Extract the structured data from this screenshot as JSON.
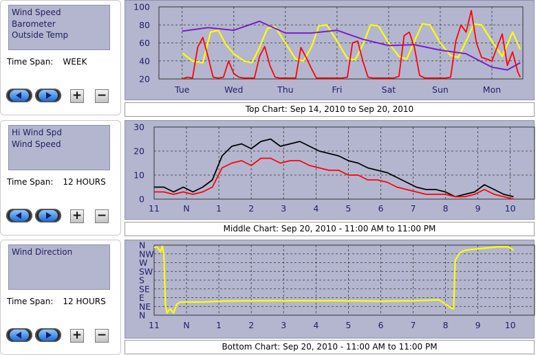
{
  "panels": [
    {
      "list": [
        "Wind Speed",
        "Barometer",
        "Outside Temp"
      ],
      "time_span_label": "Time Span:",
      "time_span_value": "WEEK",
      "caption": "Top Chart:  Sep 14, 2010  to  Sep 20, 2010"
    },
    {
      "list": [
        "Hi Wind Spd",
        "Wind Speed"
      ],
      "time_span_label": "Time Span:",
      "time_span_value": "12 HOURS",
      "caption": "Middle Chart:  Sep 20, 2010 - 11:00 AM  to  11:00 PM"
    },
    {
      "list": [
        "Wind Direction"
      ],
      "time_span_label": "Time Span:",
      "time_span_value": "12 HOURS",
      "caption": "Bottom Chart:  Sep 20, 2010 - 11:00 AM  to  11:00 PM"
    }
  ],
  "buttons": {
    "back_icon": "left-arrow-icon",
    "forward_icon": "right-arrow-icon",
    "zoom_in": "+",
    "zoom_out": "−"
  },
  "colors": {
    "panel_bg": "#b4b6cf",
    "wind": "#ff0000",
    "temp": "#ffff00",
    "baro": "#7a1ec8",
    "hi_wind": "#000000",
    "direction": "#ffff00"
  },
  "chart_data": [
    {
      "type": "line",
      "ylim": [
        20,
        100
      ],
      "y_ticks": [
        "100",
        "80",
        "60",
        "40",
        "20"
      ],
      "x_ticks": [
        "Tue",
        "Wed",
        "Thu",
        "Fri",
        "Sat",
        "Sun",
        "Mon"
      ],
      "series": [
        {
          "key": "temp",
          "x": [
            0,
            0.2,
            0.4,
            0.55,
            0.7,
            0.85,
            1.0,
            1.2,
            1.35,
            1.5,
            1.65,
            1.8,
            2.0,
            2.2,
            2.35,
            2.5,
            2.65,
            2.8,
            3.0,
            3.2,
            3.35,
            3.5,
            3.65,
            3.8,
            4.0,
            4.2,
            4.35,
            4.5,
            4.65,
            4.8,
            5.0,
            5.2,
            5.35,
            5.5,
            5.65,
            5.8,
            6.0,
            6.2,
            6.4,
            6.55
          ],
          "y": [
            49,
            40,
            38,
            72,
            74,
            58,
            48,
            40,
            38,
            55,
            76,
            78,
            60,
            42,
            40,
            55,
            79,
            80,
            62,
            43,
            41,
            58,
            80,
            79,
            60,
            45,
            42,
            62,
            81,
            80,
            60,
            46,
            44,
            62,
            81,
            80,
            62,
            45,
            72,
            53
          ]
        },
        {
          "key": "baro",
          "x": [
            0,
            0.5,
            1.0,
            1.5,
            2.0,
            2.5,
            3.0,
            3.5,
            4.0,
            4.5,
            5.0,
            5.5,
            6.0,
            6.3,
            6.55
          ],
          "y": [
            73,
            77,
            74,
            84,
            71,
            71,
            74,
            64,
            57,
            58,
            52,
            48,
            33,
            30,
            38
          ]
        },
        {
          "key": "wind",
          "x": [
            0,
            0.1,
            0.2,
            0.3,
            0.4,
            0.5,
            0.6,
            0.7,
            0.8,
            0.9,
            1.0,
            1.1,
            1.2,
            1.3,
            1.4,
            1.5,
            1.6,
            1.7,
            1.8,
            1.9,
            2.0,
            2.1,
            2.2,
            2.3,
            2.4,
            2.5,
            2.6,
            2.7,
            2.8,
            2.9,
            3.0,
            3.1,
            3.2,
            3.3,
            3.4,
            3.5,
            3.6,
            3.7,
            3.8,
            3.9,
            4.0,
            4.1,
            4.2,
            4.3,
            4.4,
            4.5,
            4.6,
            4.7,
            4.8,
            4.9,
            5.0,
            5.1,
            5.2,
            5.3,
            5.4,
            5.5,
            5.6,
            5.7,
            5.8,
            5.9,
            6.0,
            6.1,
            6.2,
            6.3,
            6.4,
            6.5,
            6.55
          ],
          "y": [
            20,
            22,
            21,
            55,
            66,
            45,
            22,
            21,
            22,
            40,
            26,
            22,
            21,
            21,
            21,
            45,
            56,
            35,
            22,
            21,
            21,
            21,
            21,
            55,
            44,
            32,
            21,
            21,
            21,
            21,
            21,
            21,
            22,
            60,
            62,
            40,
            22,
            21,
            21,
            21,
            21,
            21,
            23,
            68,
            72,
            55,
            24,
            21,
            21,
            21,
            21,
            21,
            22,
            62,
            80,
            72,
            96,
            60,
            44,
            42,
            40,
            55,
            70,
            35,
            50,
            28,
            22
          ]
        }
      ]
    },
    {
      "type": "line",
      "ylim": [
        0,
        30
      ],
      "y_ticks": [
        "30",
        "20",
        "10",
        "0"
      ],
      "x_ticks": [
        "11",
        "N",
        "1",
        "2",
        "3",
        "4",
        "5",
        "6",
        "7",
        "8",
        "9",
        "10",
        "11"
      ],
      "series": [
        {
          "key": "hi_wind",
          "x": [
            0,
            0.3,
            0.6,
            0.9,
            1.2,
            1.5,
            1.8,
            2.1,
            2.4,
            2.7,
            3.0,
            3.3,
            3.6,
            3.9,
            4.2,
            4.5,
            4.8,
            5.1,
            5.4,
            5.7,
            6.0,
            6.3,
            6.6,
            6.9,
            7.2,
            7.5,
            7.8,
            8.1,
            8.4,
            8.7,
            9.0,
            9.3,
            9.6,
            9.9,
            10.2,
            10.5,
            10.8,
            11.1
          ],
          "y": [
            5,
            5,
            3,
            5,
            3,
            5,
            8,
            18,
            22,
            23,
            21,
            24,
            25,
            22,
            23,
            24,
            22,
            20,
            19,
            18,
            16,
            15,
            13,
            12,
            11,
            9,
            7,
            5,
            4,
            4,
            3,
            1,
            2,
            3,
            6,
            4,
            2,
            1
          ]
        },
        {
          "key": "wind",
          "x": [
            0,
            0.3,
            0.6,
            0.9,
            1.2,
            1.5,
            1.8,
            2.1,
            2.4,
            2.7,
            3.0,
            3.3,
            3.6,
            3.9,
            4.2,
            4.5,
            4.8,
            5.1,
            5.4,
            5.7,
            6.0,
            6.3,
            6.6,
            6.9,
            7.2,
            7.5,
            7.8,
            8.1,
            8.4,
            8.7,
            9.0,
            9.3,
            9.6,
            9.9,
            10.2,
            10.5,
            10.8,
            11.1
          ],
          "y": [
            3,
            3,
            2,
            3,
            2,
            3,
            5,
            13,
            15,
            16,
            14,
            17,
            17,
            15,
            16,
            16,
            14,
            13,
            12,
            12,
            10,
            10,
            8,
            8,
            7,
            5,
            4,
            3,
            2,
            2,
            2,
            1,
            1,
            2,
            4,
            2,
            1,
            0
          ]
        }
      ]
    },
    {
      "type": "line",
      "y_ticks": [
        "N",
        "NW",
        "W",
        "SW",
        "S",
        "SE",
        "E",
        "NE",
        "N"
      ],
      "x_ticks": [
        "11",
        "N",
        "1",
        "2",
        "3",
        "4",
        "5",
        "6",
        "7",
        "8",
        "9",
        "10",
        "11"
      ],
      "series": [
        {
          "key": "direction",
          "x": [
            0,
            0.1,
            0.2,
            0.25,
            0.3,
            0.35,
            0.4,
            0.5,
            0.6,
            0.7,
            0.8,
            1.0,
            1.5,
            2.0,
            3.0,
            4.0,
            5.0,
            6.0,
            7.0,
            8.0,
            8.8,
            9.2,
            9.25,
            9.3,
            9.4,
            9.5,
            9.6,
            9.8,
            10.2,
            10.6,
            10.9,
            11.0,
            11.1
          ],
          "y": [
            15.5,
            15.5,
            14.5,
            15.8,
            14.0,
            2.5,
            0.5,
            1.5,
            0.5,
            2.5,
            3.0,
            3.0,
            3.0,
            3.2,
            3.3,
            3.3,
            3.3,
            3.3,
            3.2,
            3.3,
            3.5,
            1.5,
            1.5,
            12.5,
            13.8,
            14.5,
            14.8,
            15.0,
            15.3,
            15.6,
            15.6,
            15.4,
            14.8
          ]
        }
      ]
    }
  ]
}
